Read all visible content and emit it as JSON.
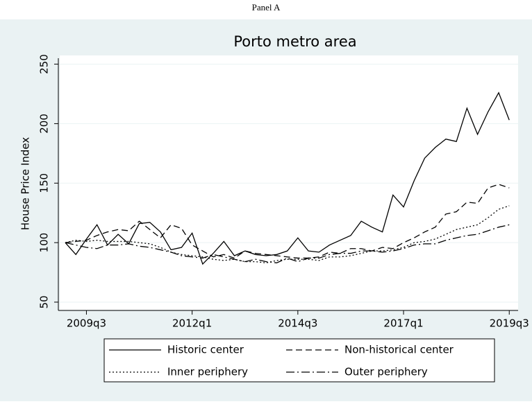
{
  "panel": "Panel A",
  "chart_data": {
    "type": "line",
    "title": "Porto metro area",
    "y_label": "House Price Index",
    "categories": [
      null,
      null,
      "2009q3",
      null,
      null,
      null,
      null,
      null,
      null,
      null,
      null,
      null,
      "2012q1",
      null,
      null,
      null,
      null,
      null,
      null,
      null,
      null,
      null,
      "2014q3",
      null,
      null,
      null,
      null,
      null,
      null,
      null,
      null,
      null,
      "2017q1",
      null,
      null,
      null,
      null,
      null,
      null,
      null,
      null,
      null,
      "2019q3"
    ],
    "ylim": [
      43,
      255
    ],
    "yticks": [
      50,
      100,
      150,
      200,
      250
    ],
    "grid": true,
    "legend": "bottom",
    "series": [
      {
        "name": "Historic center",
        "color": "#000000",
        "dash": "solid",
        "values": [
          100,
          90,
          103,
          115,
          98,
          107,
          99,
          116,
          117,
          109,
          94,
          96,
          108,
          82,
          91,
          101,
          89,
          93,
          90,
          89,
          90,
          93,
          104,
          93,
          92,
          98,
          102,
          106,
          118,
          113,
          109,
          140,
          130,
          152,
          171,
          180,
          187,
          185,
          213,
          191,
          210,
          226,
          203
        ]
      },
      {
        "name": "Non-historical center",
        "color": "#000000",
        "dash": "dash",
        "values": [
          100,
          101,
          102,
          106,
          109,
          111,
          110,
          118,
          111,
          104,
          115,
          112,
          98,
          93,
          88,
          90,
          87,
          93,
          91,
          90,
          89,
          88,
          87,
          87,
          88,
          92,
          91,
          95,
          95,
          93,
          96,
          95,
          100,
          104,
          109,
          113,
          124,
          126,
          134,
          133,
          146,
          149,
          146
        ]
      },
      {
        "name": "Inner periphery",
        "color": "#000000",
        "dash": "dot",
        "values": [
          100,
          102,
          101,
          102,
          101,
          101,
          101,
          100,
          99,
          96,
          92,
          90,
          89,
          88,
          86,
          85,
          86,
          84,
          84,
          83,
          85,
          86,
          86,
          86,
          85,
          88,
          88,
          89,
          91,
          93,
          93,
          94,
          96,
          100,
          101,
          103,
          107,
          111,
          113,
          115,
          121,
          128,
          131
        ]
      },
      {
        "name": "Outer periphery",
        "color": "#000000",
        "dash": "dashdot",
        "values": [
          100,
          98,
          96,
          95,
          98,
          98,
          99,
          97,
          96,
          94,
          92,
          89,
          88,
          87,
          90,
          88,
          86,
          84,
          86,
          84,
          83,
          87,
          84,
          87,
          87,
          90,
          91,
          91,
          93,
          93,
          92,
          93,
          95,
          98,
          99,
          99,
          102,
          104,
          106,
          107,
          110,
          113,
          115
        ]
      }
    ]
  }
}
